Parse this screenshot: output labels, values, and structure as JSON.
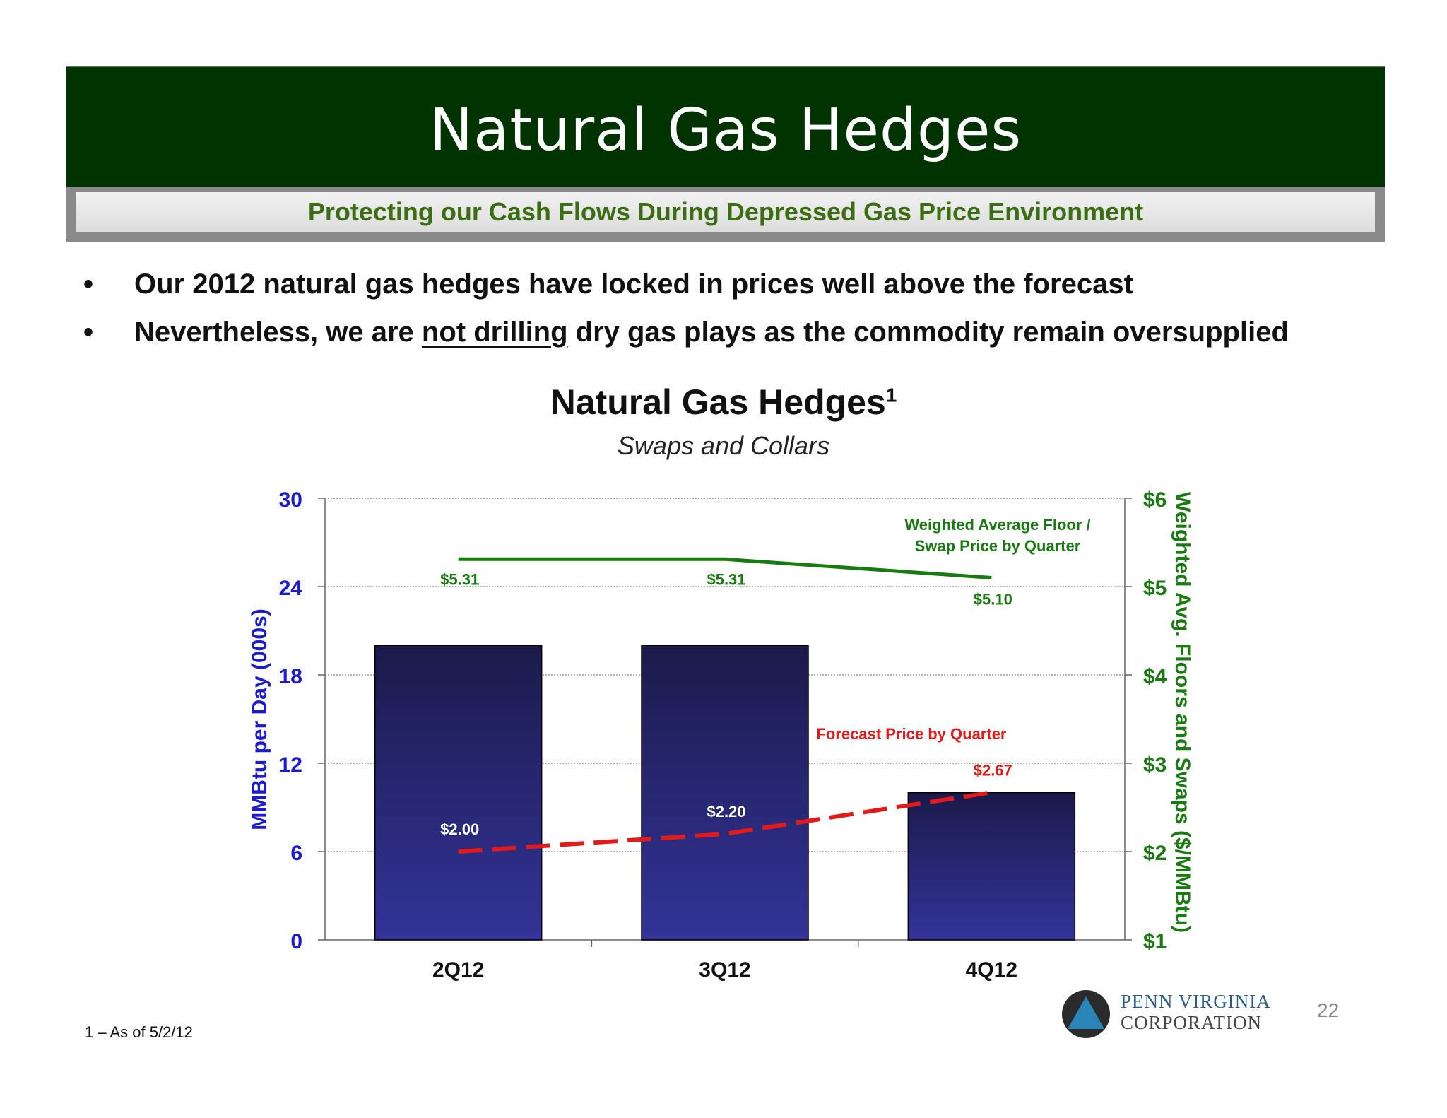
{
  "slide": {
    "title": "Natural Gas Hedges",
    "subtitle": "Protecting our Cash Flows During Depressed Gas Price Environment",
    "bullets": [
      {
        "pre": "Our 2012 natural gas hedges have locked in prices well above the forecast",
        "underline": "",
        "post": ""
      },
      {
        "pre": "Nevertheless, we are ",
        "underline": "not drilling",
        "post": " dry gas plays as the commodity remain oversupplied"
      }
    ],
    "bullet_symbol": "•",
    "footnote": "1 – As of 5/2/12",
    "page_number": "22",
    "logo": {
      "line1": "PENN VIRGINIA",
      "line2": "CORPORATION"
    }
  },
  "chart_data": {
    "type": "bar",
    "title": "Natural Gas Hedges",
    "title_superscript": "1",
    "subtitle": "Swaps and Collars",
    "categories": [
      "2Q12",
      "3Q12",
      "4Q12"
    ],
    "series": [
      {
        "name": "",
        "values": [
          20,
          20,
          10
        ],
        "axis": "left",
        "color": "#2a2a80"
      }
    ],
    "lines": [
      {
        "name": "Weighted Average Floor /",
        "name_line2": "Swap Price by Quarter",
        "values": [
          5.31,
          5.31,
          5.1
        ],
        "labels": [
          "$5.31",
          "$5.31",
          "$5.10"
        ],
        "axis": "right",
        "color": "#1a7a12",
        "style": "solid"
      },
      {
        "name": "Forecast Price by Quarter",
        "name_line2": "",
        "values": [
          2.0,
          2.2,
          2.67
        ],
        "labels": [
          "$2.00",
          "$2.20",
          "$2.67"
        ],
        "axis": "right",
        "color": "#e31a1a",
        "style": "dashed"
      }
    ],
    "ylabel": "MMBtu per Day (000s)",
    "ylim": [
      0,
      30
    ],
    "yticks": [
      "0",
      "6",
      "12",
      "18",
      "24",
      "30"
    ],
    "y2label": "Weighted Avg. Floors and Swaps  ($/MMBtu)",
    "y2lim": [
      1,
      6
    ],
    "y2ticks": [
      "$1",
      "$2",
      "$3",
      "$4",
      "$5",
      "$6"
    ],
    "colors": {
      "left_axis": "#1a1ad0",
      "right_axis": "#1a7a12",
      "grid": "#9a9a9a"
    },
    "grid": true
  }
}
